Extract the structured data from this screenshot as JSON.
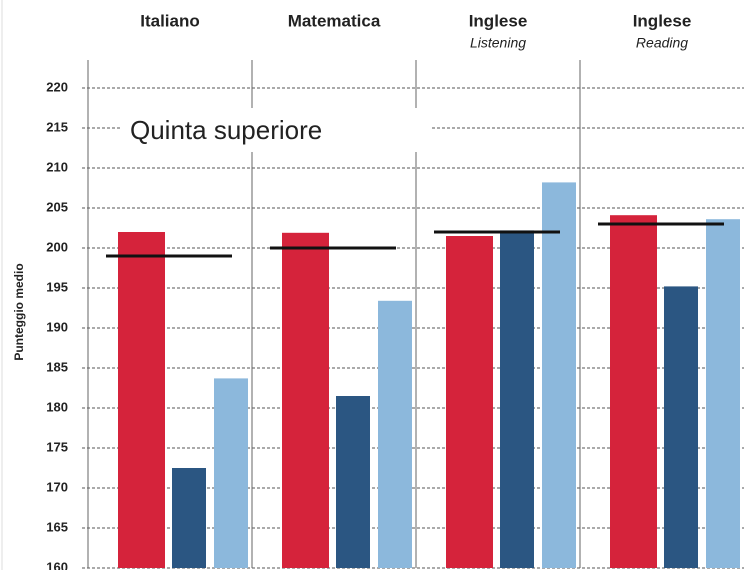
{
  "chart_data": {
    "type": "bar",
    "categories": [
      "Italiano",
      "Matematica",
      "Inglese",
      "Inglese"
    ],
    "category_subtitles": [
      null,
      null,
      "Listening",
      "Reading"
    ],
    "annotation": "Quinta superiore",
    "y_label": "Punteggio medio",
    "series": [
      {
        "color": "#d5233b",
        "values": [
          202,
          201.9,
          201.5,
          204.1
        ]
      },
      {
        "color": "#2b5682",
        "values": [
          172.5,
          181.5,
          202.2,
          195.2
        ]
      },
      {
        "color": "#8cb8dc",
        "values": [
          183.7,
          193.4,
          208.2,
          203.6
        ]
      }
    ],
    "reference": {
      "color": "#111111",
      "values": [
        199,
        200,
        202,
        203
      ]
    },
    "ylim": [
      160,
      223.5
    ],
    "yticks": [
      160,
      165,
      170,
      175,
      180,
      185,
      190,
      195,
      200,
      205,
      210,
      215,
      220
    ],
    "grid": true
  }
}
